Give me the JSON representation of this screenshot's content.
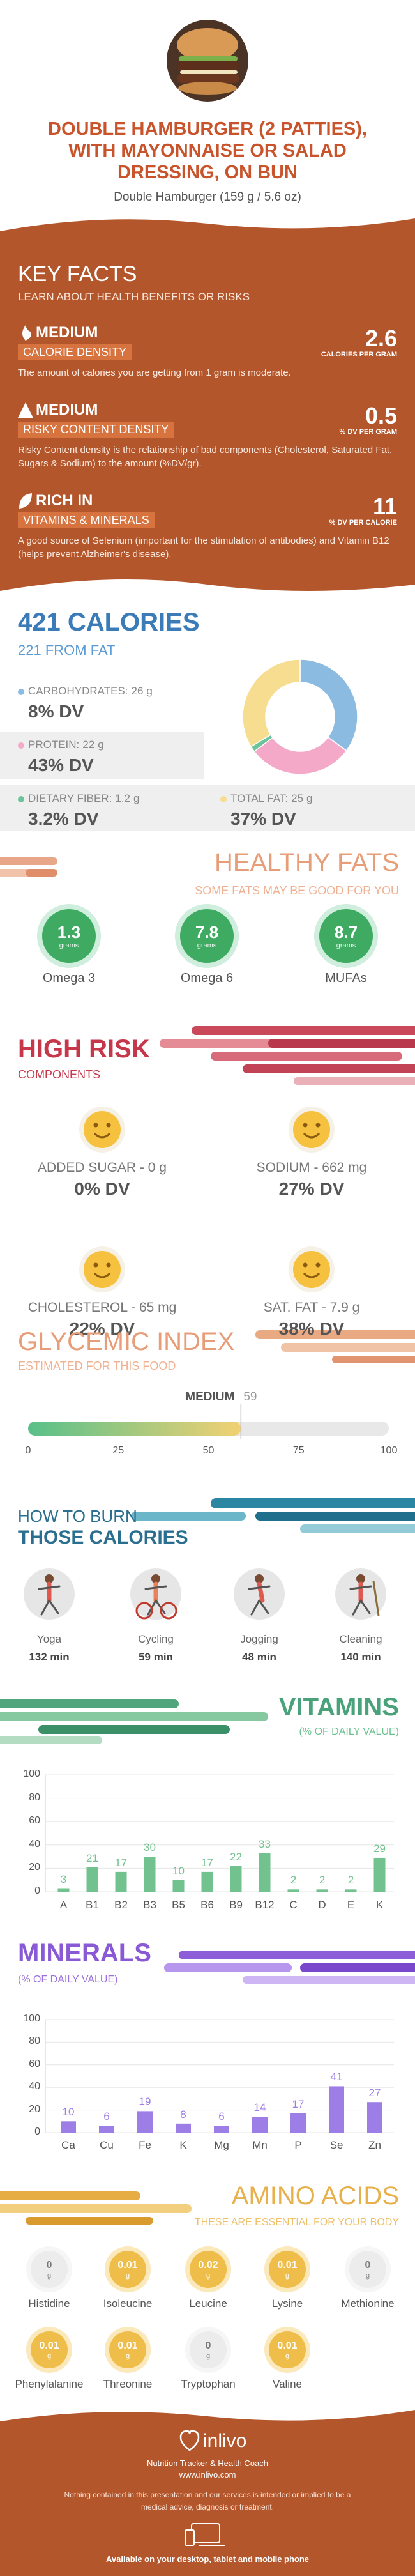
{
  "header": {
    "title": "DOUBLE HAMBURGER (2 PATTIES), WITH MAYONNAISE OR SALAD DRESSING, ON BUN",
    "subtitle": "Double Hamburger (159 g / 5.6 oz)"
  },
  "key_facts": {
    "title": "KEY FACTS",
    "subtitle": "LEARN ABOUT HEALTH BENEFITS OR RISKS",
    "items": [
      {
        "level": "MEDIUM",
        "label": "CALORIE DENSITY",
        "value": 2.6,
        "unit": "CALORIES PER GRAM",
        "description": "The amount of calories you are getting from 1 gram is moderate."
      },
      {
        "level": "MEDIUM",
        "label": "RISKY CONTENT DENSITY",
        "value": 0.5,
        "unit": "% DV PER GRAM",
        "description": "Risky Content density is the relationship of bad components (Cholesterol, Saturated Fat, Sugars & Sodium) to the amount (%DV/gr)."
      },
      {
        "level": "RICH IN",
        "label": "VITAMINS & MINERALS",
        "value": 11,
        "unit": "% DV PER CALORIE",
        "description": "A good source of Selenium (important for the stimulation of antibodies) and Vitamin B12 (helps prevent Alzheimer's disease)."
      }
    ]
  },
  "calories": {
    "title": "421 CALORIES",
    "subtitle": "221 FROM FAT",
    "nutrients": [
      {
        "name": "CARBOHYDRATES:",
        "amount": 26,
        "unit": "g",
        "dv": "8% DV",
        "color": "#8cbbe2"
      },
      {
        "name": "PROTEIN:",
        "amount": 22,
        "unit": "g",
        "dv": "43% DV",
        "color": "#f5a9c8"
      },
      {
        "name": "DIETARY FIBER:",
        "amount": 1.2,
        "unit": "g",
        "dv": "3.2% DV",
        "color": "#6cc49b"
      },
      {
        "name": "TOTAL FAT:",
        "amount": 25,
        "unit": "g",
        "dv": "37% DV",
        "color": "#f6dd90"
      }
    ]
  },
  "healthy_fats": {
    "title": "HEALTHY FATS",
    "subtitle": "SOME FATS MAY BE GOOD FOR YOU",
    "items": [
      {
        "value": 1.3,
        "unit": "grams",
        "name": "Omega 3"
      },
      {
        "value": 7.8,
        "unit": "grams",
        "name": "Omega 6"
      },
      {
        "value": 8.7,
        "unit": "grams",
        "name": "MUFAs"
      }
    ]
  },
  "high_risk": {
    "title": "HIGH RISK",
    "subtitle": "COMPONENTS",
    "items": [
      {
        "label": "ADDED SUGAR - 0 g",
        "dv": "0% DV"
      },
      {
        "label": "SODIUM - 662 mg",
        "dv": "27% DV"
      },
      {
        "label": "CHOLESTEROL - 65 mg",
        "dv": "22% DV"
      },
      {
        "label": "SAT. FAT - 7.9 g",
        "dv": "38% DV"
      }
    ]
  },
  "glycemic": {
    "title": "GLYCEMIC INDEX",
    "subtitle": "ESTIMATED FOR THIS FOOD",
    "level": "MEDIUM",
    "value": 59,
    "xlim": [
      0,
      100
    ],
    "xticks": [
      0,
      25,
      50,
      75,
      100
    ]
  },
  "burn": {
    "title": "HOW TO BURN",
    "subtitle": "THOSE CALORIES",
    "activities": [
      {
        "name": "Yoga",
        "time": "132 min"
      },
      {
        "name": "Cycling",
        "time": "59 min"
      },
      {
        "name": "Jogging",
        "time": "48 min"
      },
      {
        "name": "Cleaning",
        "time": "140 min"
      }
    ]
  },
  "vitamins": {
    "title": "VITAMINS",
    "subtitle": "(% OF DAILY VALUE)",
    "chart": {
      "type": "bar",
      "categories": [
        "A",
        "B1",
        "B2",
        "B3",
        "B5",
        "B6",
        "B9",
        "B12",
        "C",
        "D",
        "E",
        "K"
      ],
      "values": [
        3,
        21,
        17,
        30,
        10,
        17,
        22,
        33,
        2,
        2,
        2,
        29
      ],
      "color": "#72c290",
      "ylim": [
        0,
        100
      ],
      "yticks": [
        0,
        20,
        40,
        60,
        80,
        100
      ],
      "grid": true
    }
  },
  "minerals": {
    "title": "MINERALS",
    "subtitle": "(% OF DAILY VALUE)",
    "chart": {
      "type": "bar",
      "categories": [
        "Ca",
        "Cu",
        "Fe",
        "K",
        "Mg",
        "Mn",
        "P",
        "Se",
        "Zn"
      ],
      "values": [
        10,
        6,
        19,
        8,
        6,
        14,
        17,
        41,
        27
      ],
      "color": "#9d7de6",
      "ylim": [
        0,
        100
      ],
      "yticks": [
        0,
        20,
        40,
        60,
        80,
        100
      ],
      "grid": true
    }
  },
  "amino_acids": {
    "title": "AMINO ACIDS",
    "subtitle": "THESE ARE ESSENTIAL FOR YOUR BODY",
    "items": [
      {
        "name": "Histidine",
        "value": 0,
        "unit": "g"
      },
      {
        "name": "Isoleucine",
        "value": 0.01,
        "unit": "g"
      },
      {
        "name": "Leucine",
        "value": 0.02,
        "unit": "g"
      },
      {
        "name": "Lysine",
        "value": 0.01,
        "unit": "g"
      },
      {
        "name": "Methionine",
        "value": 0,
        "unit": "g"
      },
      {
        "name": "Phenylalanine",
        "value": 0.01,
        "unit": "g"
      },
      {
        "name": "Threonine",
        "value": 0.01,
        "unit": "g"
      },
      {
        "name": "Tryptophan",
        "value": 0,
        "unit": "g"
      },
      {
        "name": "Valine",
        "value": 0.01,
        "unit": "g"
      }
    ]
  },
  "footer": {
    "brand": "inlivo",
    "tagline": "Nutrition Tracker & Health Coach",
    "url": "www.inlivo.com",
    "disclaimer": "Nothing contained in this presentation and our services is intended or implied to be a medical advice, diagnosis or treatment.",
    "availability": "Available on your desktop, tablet and mobile phone"
  }
}
